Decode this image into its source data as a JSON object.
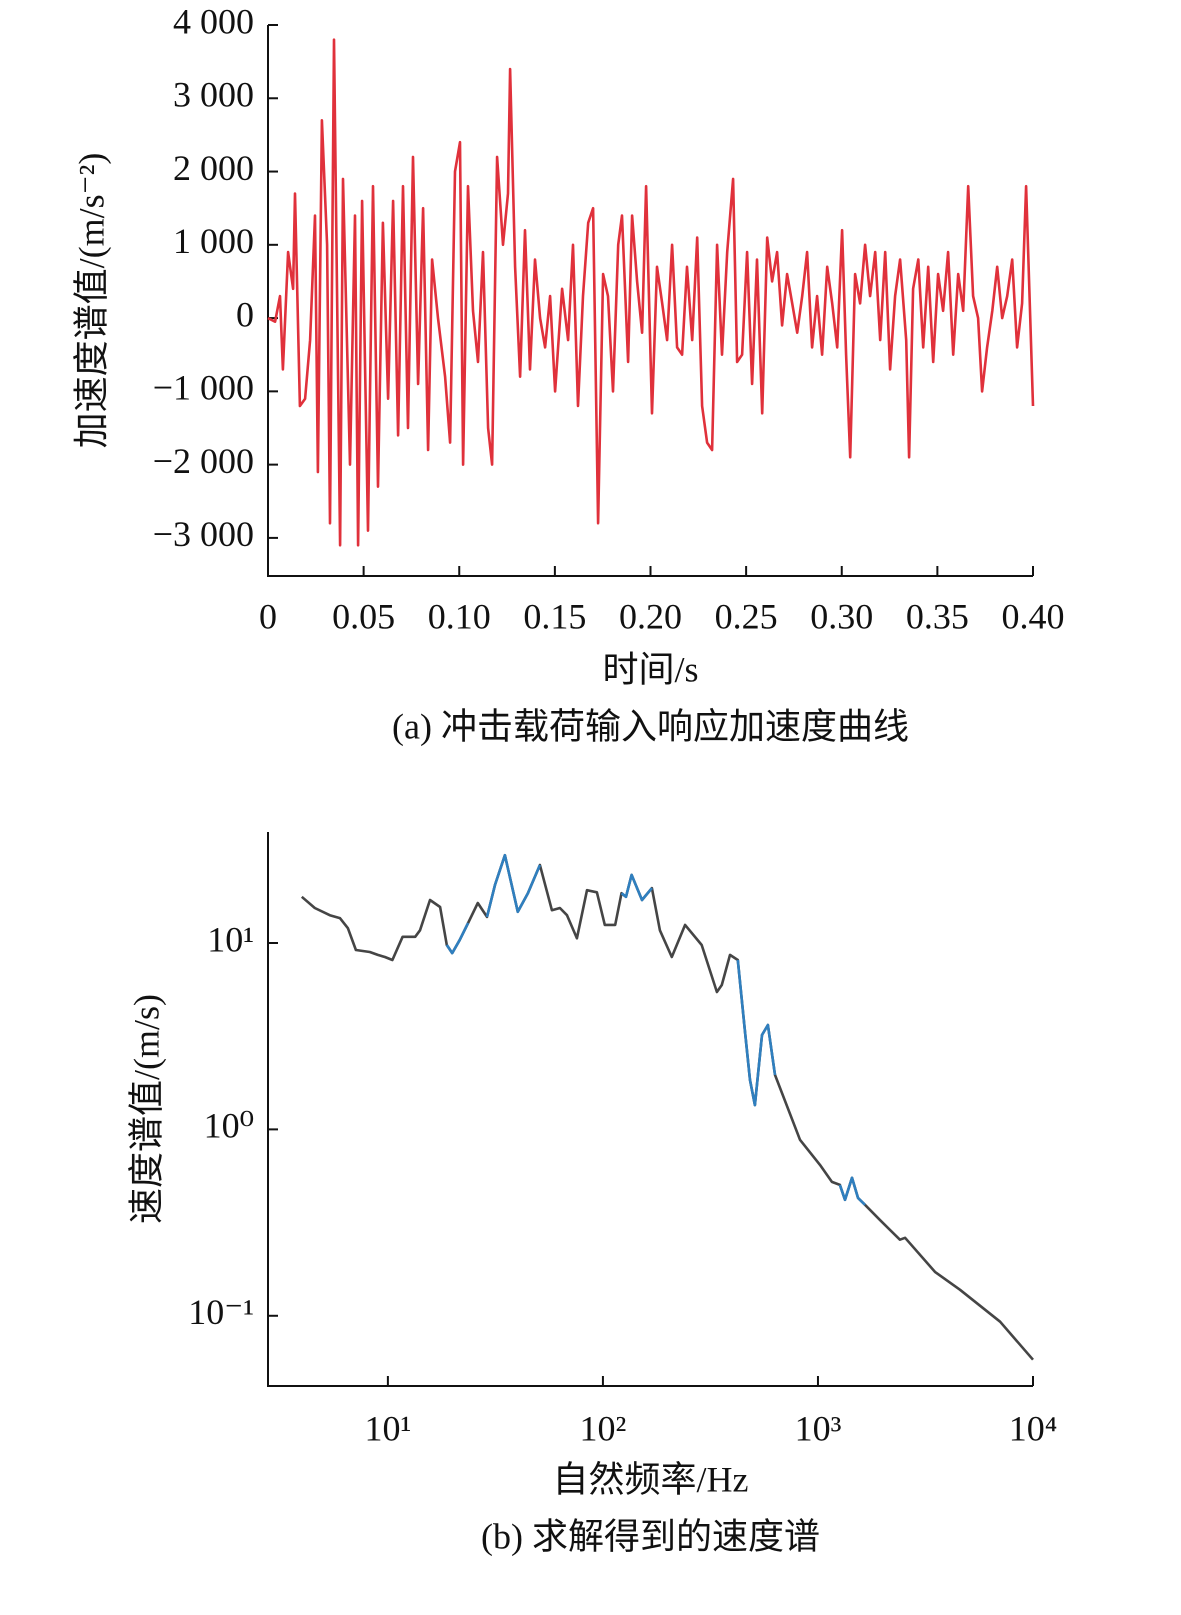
{
  "chart_data": [
    {
      "type": "line",
      "title": "(a) 冲击载荷输入响应加速度曲线",
      "x_label": "时间/s",
      "y_label": "加速度谱值/(m/s⁻²)",
      "xlim": [
        0,
        0.4
      ],
      "ylim": [
        -3520,
        4000
      ],
      "xticks": [
        0,
        0.05,
        {
          "value": 0.1,
          "label": "0.10"
        },
        0.15,
        {
          "value": 0.2,
          "label": "0.20"
        },
        0.25,
        {
          "value": 0.3,
          "label": "0.30"
        },
        0.35,
        {
          "value": 0.4,
          "label": "0.40"
        }
      ],
      "yticks": [
        {
          "value": -3000,
          "label": "−3 000"
        },
        {
          "value": -2000,
          "label": "−2 000"
        },
        {
          "value": -1000,
          "label": "−1 000"
        },
        0,
        {
          "value": 1000,
          "label": "1 000"
        },
        {
          "value": 2000,
          "label": "2 000"
        },
        {
          "value": 3000,
          "label": "3 000"
        },
        {
          "value": 4000,
          "label": "4 000"
        }
      ],
      "x": [
        0,
        0.0037,
        0.0063,
        0.0078,
        0.0105,
        0.0131,
        0.0141,
        0.0167,
        0.0194,
        0.022,
        0.0246,
        0.0261,
        0.0282,
        0.0309,
        0.0324,
        0.0345,
        0.0377,
        0.0392,
        0.0429,
        0.0455,
        0.0471,
        0.0492,
        0.0523,
        0.0549,
        0.0575,
        0.0601,
        0.0628,
        0.0654,
        0.068,
        0.0706,
        0.0732,
        0.0758,
        0.0785,
        0.0811,
        0.0837,
        0.0858,
        0.0889,
        0.0926,
        0.0952,
        0.0978,
        0.1004,
        0.102,
        0.1046,
        0.1072,
        0.1098,
        0.1124,
        0.1151,
        0.1172,
        0.1198,
        0.1229,
        0.1255,
        0.1266,
        0.1292,
        0.1318,
        0.1344,
        0.137,
        0.1396,
        0.1423,
        0.1449,
        0.1475,
        0.1501,
        0.1538,
        0.1569,
        0.1595,
        0.1621,
        0.1647,
        0.1674,
        0.17,
        0.1726,
        0.1752,
        0.1778,
        0.1804,
        0.1831,
        0.1851,
        0.1883,
        0.1904,
        0.193,
        0.1956,
        0.1977,
        0.2008,
        0.2034,
        0.2061,
        0.2087,
        0.2113,
        0.2139,
        0.2165,
        0.2191,
        0.2218,
        0.2244,
        0.227,
        0.2296,
        0.2322,
        0.2348,
        0.2374,
        0.2401,
        0.2432,
        0.2453,
        0.2479,
        0.2505,
        0.2531,
        0.2557,
        0.2584,
        0.261,
        0.2636,
        0.2662,
        0.2688,
        0.2714,
        0.2741,
        0.2767,
        0.2793,
        0.2819,
        0.2845,
        0.2871,
        0.2897,
        0.2924,
        0.295,
        0.2976,
        0.3002,
        0.3023,
        0.3044,
        0.307,
        0.3096,
        0.3122,
        0.3148,
        0.3175,
        0.3201,
        0.3227,
        0.3253,
        0.3279,
        0.3305,
        0.3337,
        0.3352,
        0.3373,
        0.34,
        0.3426,
        0.3452,
        0.3478,
        0.3504,
        0.353,
        0.3556,
        0.3583,
        0.3609,
        0.3635,
        0.3661,
        0.3687,
        0.3713,
        0.3734,
        0.376,
        0.3787,
        0.3813,
        0.3839,
        0.3865,
        0.3891,
        0.3917,
        0.3943,
        0.3964,
        0.4
      ],
      "series": [
        {
          "color": "#e0313b",
          "values": [
            0,
            -50,
            300,
            -700,
            900,
            400,
            1700,
            -1200,
            -1100,
            -300,
            1400,
            -2100,
            2700,
            1000,
            -2800,
            3800,
            -3100,
            1900,
            -2000,
            1400,
            -3100,
            1600,
            -2900,
            1800,
            -2300,
            1300,
            -1100,
            1600,
            -1600,
            1800,
            -1500,
            2200,
            -900,
            1500,
            -1800,
            800,
            0,
            -800,
            -1700,
            2000,
            2400,
            -2000,
            1800,
            100,
            -600,
            900,
            -1500,
            -2000,
            2200,
            1000,
            1700,
            3400,
            700,
            -800,
            1200,
            -700,
            800,
            0,
            -400,
            300,
            -1000,
            400,
            -300,
            1000,
            -1200,
            300,
            1300,
            1500,
            -2800,
            600,
            300,
            -1000,
            1000,
            1400,
            -600,
            1400,
            500,
            -200,
            1800,
            -1300,
            700,
            200,
            -300,
            1000,
            -400,
            -500,
            700,
            -300,
            1100,
            -1200,
            -1700,
            -1800,
            1000,
            -500,
            900,
            1900,
            -600,
            -500,
            900,
            -900,
            800,
            -1300,
            1100,
            500,
            900,
            -100,
            600,
            200,
            -200,
            300,
            900,
            -400,
            300,
            -500,
            700,
            200,
            -400,
            1200,
            -500,
            -1900,
            600,
            200,
            1000,
            300,
            900,
            -300,
            900,
            -700,
            300,
            800,
            -300,
            -1900,
            400,
            800,
            -400,
            700,
            -600,
            600,
            100,
            900,
            -500,
            600,
            100,
            1800,
            300,
            0,
            -1000,
            -400,
            100,
            700,
            0,
            300,
            800,
            -400,
            200,
            1800,
            -1200
          ]
        }
      ]
    },
    {
      "type": "line",
      "title": "(b) 求解得到的速度谱",
      "x_label": "自然频率/Hz",
      "y_label": "速度谱值/(m/s)",
      "xscale": "log",
      "yscale": "log",
      "xlim": [
        2.77,
        10000
      ],
      "ylim": [
        0.042,
        39.4
      ],
      "xticks": [
        {
          "value": 10,
          "label": "10¹"
        },
        {
          "value": 100,
          "label": "10²"
        },
        {
          "value": 1000,
          "label": "10³"
        },
        {
          "value": 10000,
          "label": "10⁴"
        }
      ],
      "yticks": [
        {
          "value": 0.1,
          "label": "10⁻¹"
        },
        {
          "value": 1,
          "label": "10⁰"
        },
        {
          "value": 10,
          "label": "10¹"
        }
      ],
      "x": [
        3.98,
        4.57,
        5.37,
        5.98,
        6.52,
        7.1,
        8.24,
        8.98,
        9.68,
        10.5,
        11.7,
        13.4,
        14.1,
        15.7,
        17.5,
        18.8,
        19.9,
        21.6,
        23.6,
        26.2,
        28.9,
        31.5,
        35,
        40.2,
        44.8,
        50.9,
        57.9,
        63.1,
        68.1,
        75.7,
        84.3,
        93.8,
        102,
        114,
        122,
        128,
        136,
        152,
        169,
        184,
        209,
        241,
        288,
        339,
        357,
        390,
        424,
        457,
        483,
        509,
        549,
        585,
        631,
        825,
        1021,
        1161,
        1265,
        1336,
        1439,
        1535,
        1655,
        1942,
        2405,
        2541,
        3500,
        4571,
        7031,
        10000
      ],
      "series": [
        {
          "color": "#454545",
          "values": [
            17.7,
            15.4,
            14.1,
            13.6,
            12,
            9.17,
            8.95,
            8.63,
            8.41,
            8.11,
            10.8,
            10.8,
            11.7,
            17,
            15.6,
            9.76,
            8.83,
            10.4,
            12.8,
            16.4,
            13.8,
            20.5,
            29.6,
            14.7,
            18.5,
            26.2,
            15,
            15.4,
            14.1,
            10.6,
            19.2,
            18.7,
            12.5,
            12.5,
            18.5,
            17.7,
            23.2,
            17,
            19.7,
            11.7,
            8.41,
            12.5,
            9.76,
            5.46,
            5.95,
            8.63,
            8.11,
            3.42,
            1.84,
            1.35,
            3.21,
            3.63,
            1.96,
            0.879,
            0.646,
            0.523,
            0.504,
            0.419,
            0.55,
            0.429,
            0.394,
            0.327,
            0.256,
            0.262,
            0.172,
            0.138,
            0.0929,
            0.0581
          ]
        },
        {
          "color": "#2f7fbf",
          "values": [
            null,
            null,
            null,
            null,
            null,
            null,
            null,
            null,
            null,
            null,
            null,
            null,
            null,
            null,
            null,
            9.76,
            8.83,
            10.4,
            12.8,
            null,
            13.8,
            20.5,
            29.6,
            14.7,
            18.5,
            26.2,
            null,
            null,
            null,
            null,
            null,
            null,
            null,
            null,
            18.5,
            17.7,
            23.2,
            17,
            19.7,
            null,
            null,
            null,
            null,
            null,
            null,
            null,
            8.11,
            3.42,
            1.84,
            1.35,
            3.21,
            3.63,
            1.96,
            null,
            null,
            null,
            0.504,
            0.419,
            0.55,
            0.429,
            0.394,
            null,
            null,
            null,
            null,
            null,
            null,
            null
          ]
        }
      ]
    }
  ]
}
